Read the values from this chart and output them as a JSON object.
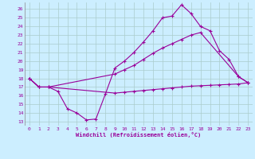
{
  "xlabel": "Windchill (Refroidissement éolien,°C)",
  "background_color": "#cceeff",
  "grid_color": "#aacccc",
  "line_color": "#990099",
  "line1_x": [
    0,
    1,
    2,
    3,
    4,
    5,
    6,
    7,
    8,
    9,
    10,
    11,
    12,
    13,
    14,
    15,
    16,
    17,
    18,
    19,
    20,
    21,
    22,
    23
  ],
  "line1_y": [
    18,
    17,
    17,
    16.5,
    14.5,
    14.0,
    13.2,
    13.3,
    16.2,
    19.2,
    20.0,
    21.0,
    22.2,
    23.5,
    25.0,
    25.2,
    26.5,
    25.5,
    24.0,
    23.5,
    21.2,
    20.2,
    18.2,
    17.5
  ],
  "line2_x": [
    0,
    1,
    2,
    9,
    10,
    11,
    12,
    13,
    14,
    15,
    16,
    17,
    18,
    22,
    23
  ],
  "line2_y": [
    18,
    17,
    17,
    18.5,
    19.0,
    19.5,
    20.2,
    20.9,
    21.5,
    22.0,
    22.5,
    23.0,
    23.3,
    18.2,
    17.5
  ],
  "line3_x": [
    0,
    1,
    2,
    9,
    10,
    11,
    12,
    13,
    14,
    15,
    16,
    17,
    18,
    19,
    20,
    21,
    22,
    23
  ],
  "line3_y": [
    18,
    17,
    17,
    16.3,
    16.4,
    16.5,
    16.6,
    16.7,
    16.8,
    16.9,
    17.0,
    17.1,
    17.15,
    17.2,
    17.25,
    17.3,
    17.35,
    17.5
  ],
  "ylim": [
    12.5,
    26.8
  ],
  "xlim": [
    -0.5,
    23.5
  ],
  "yticks": [
    13,
    14,
    15,
    16,
    17,
    18,
    19,
    20,
    21,
    22,
    23,
    24,
    25,
    26
  ],
  "xticks": [
    0,
    1,
    2,
    3,
    4,
    5,
    6,
    7,
    8,
    9,
    10,
    11,
    12,
    13,
    14,
    15,
    16,
    17,
    18,
    19,
    20,
    21,
    22,
    23
  ]
}
